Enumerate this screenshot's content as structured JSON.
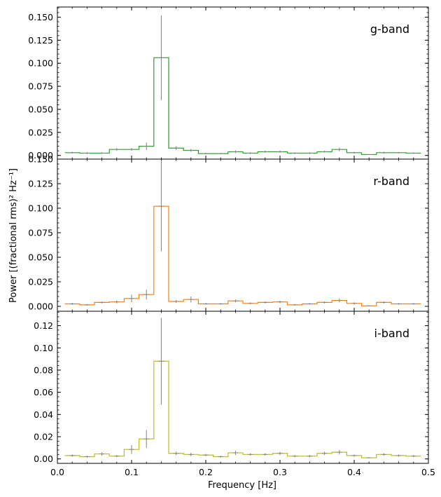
{
  "chart_data": {
    "type": "step",
    "xlabel": "Frequency [Hz]",
    "ylabel": "Power [(fractional rms)² Hz⁻¹]",
    "x_ticks": [
      0.0,
      0.1,
      0.2,
      0.3,
      0.4,
      0.5
    ],
    "x_tick_labels": [
      "0.0",
      "0.1",
      "0.2",
      "0.3",
      "0.4",
      "0.5"
    ],
    "xlim": [
      0.0,
      0.5
    ],
    "bin_width": 0.02,
    "bin_centers": [
      0.02,
      0.04,
      0.06,
      0.08,
      0.1,
      0.12,
      0.14,
      0.16,
      0.18,
      0.2,
      0.22,
      0.24,
      0.26,
      0.28,
      0.3,
      0.32,
      0.34,
      0.36,
      0.38,
      0.4,
      0.42,
      0.44,
      0.46,
      0.48
    ],
    "errorbar_color": "#808080",
    "panels": [
      {
        "label": "g-band",
        "color": "#2ca02c",
        "ylim": [
          -0.004,
          0.161
        ],
        "y_ticks": [
          0.0,
          0.025,
          0.05,
          0.075,
          0.1,
          0.125,
          0.15
        ],
        "y_tick_labels": [
          "0.000",
          "0.025",
          "0.050",
          "0.075",
          "0.100",
          "0.125",
          "0.150"
        ],
        "values": [
          0.003,
          0.0025,
          0.0025,
          0.0065,
          0.0065,
          0.01,
          0.106,
          0.008,
          0.0055,
          0.002,
          0.002,
          0.004,
          0.0025,
          0.004,
          0.004,
          0.0025,
          0.0025,
          0.004,
          0.0065,
          0.003,
          0.001,
          0.003,
          0.003,
          0.0025
        ],
        "errors": [
          0.001,
          0.001,
          0.001,
          0.0015,
          0.0015,
          0.004,
          0.046,
          0.002,
          0.0015,
          0.0008,
          0.0008,
          0.0015,
          0.001,
          0.0012,
          0.0012,
          0.001,
          0.001,
          0.001,
          0.002,
          0.001,
          0.0005,
          0.001,
          0.0008,
          0.0008
        ]
      },
      {
        "label": "r-band",
        "color": "#ff7f0e",
        "ylim": [
          -0.005,
          0.15
        ],
        "y_ticks": [
          0.0,
          0.025,
          0.05,
          0.075,
          0.1,
          0.125,
          0.15
        ],
        "y_tick_labels": [
          "0.000",
          "0.025",
          "0.050",
          "0.075",
          "0.100",
          "0.125",
          "0.150"
        ],
        "values": [
          0.0025,
          0.0015,
          0.004,
          0.0045,
          0.008,
          0.012,
          0.102,
          0.005,
          0.007,
          0.0025,
          0.0025,
          0.0055,
          0.003,
          0.004,
          0.0045,
          0.0015,
          0.0025,
          0.004,
          0.006,
          0.003,
          0.0005,
          0.004,
          0.0025,
          0.0025
        ],
        "errors": [
          0.001,
          0.0008,
          0.001,
          0.0015,
          0.004,
          0.005,
          0.046,
          0.0015,
          0.003,
          0.0008,
          0.0008,
          0.0015,
          0.001,
          0.001,
          0.0012,
          0.0008,
          0.0008,
          0.001,
          0.002,
          0.001,
          0.0005,
          0.001,
          0.0008,
          0.0008
        ]
      },
      {
        "label": "i-band",
        "color": "#bcbd22",
        "ylim": [
          -0.004,
          0.133
        ],
        "y_ticks": [
          0.0,
          0.02,
          0.04,
          0.06,
          0.08,
          0.1,
          0.12
        ],
        "y_tick_labels": [
          "0.00",
          "0.02",
          "0.04",
          "0.06",
          "0.08",
          "0.10",
          "0.12"
        ],
        "values": [
          0.003,
          0.002,
          0.0045,
          0.0025,
          0.0085,
          0.018,
          0.088,
          0.005,
          0.004,
          0.0035,
          0.002,
          0.0055,
          0.004,
          0.004,
          0.005,
          0.0025,
          0.0025,
          0.005,
          0.006,
          0.003,
          0.001,
          0.004,
          0.003,
          0.0025
        ],
        "errors": [
          0.001,
          0.0008,
          0.0015,
          0.001,
          0.004,
          0.008,
          0.039,
          0.0015,
          0.0015,
          0.001,
          0.0008,
          0.002,
          0.001,
          0.001,
          0.0015,
          0.001,
          0.001,
          0.0015,
          0.002,
          0.001,
          0.0005,
          0.001,
          0.001,
          0.001
        ]
      }
    ]
  }
}
